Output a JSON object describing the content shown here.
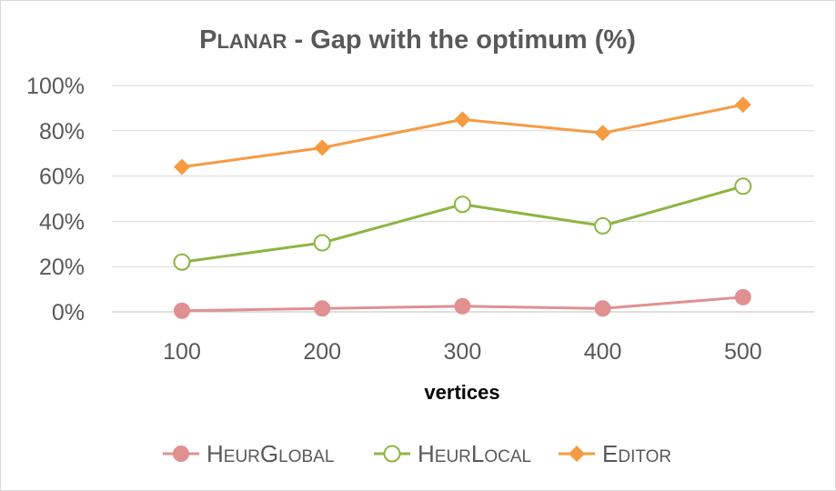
{
  "chart_data": {
    "type": "line",
    "title": {
      "prefix_cap": "P",
      "prefix_smallcaps": "LANAR",
      "rest": " - Gap with the optimum (%)"
    },
    "xlabel": "vertices",
    "ylabel": "",
    "categories": [
      "100",
      "200",
      "300",
      "400",
      "500"
    ],
    "y_ticks": [
      "0%",
      "20%",
      "40%",
      "60%",
      "80%",
      "100%"
    ],
    "ylim": [
      0,
      100
    ],
    "grid": true,
    "legend_position": "bottom",
    "series": [
      {
        "name": "HeurGlobal",
        "legend_parts": [
          [
            "H",
            "EUR"
          ],
          [
            "G",
            "LOBAL"
          ]
        ],
        "values": [
          0.5,
          1.5,
          2.5,
          1.5,
          6.5
        ],
        "color": "#e09090",
        "marker": "circle-filled"
      },
      {
        "name": "HeurLocal",
        "legend_parts": [
          [
            "H",
            "EUR"
          ],
          [
            "L",
            "OCAL"
          ]
        ],
        "values": [
          22,
          30.5,
          47.5,
          38,
          55.5
        ],
        "color": "#8db542",
        "marker": "circle-open"
      },
      {
        "name": "Editor",
        "legend_parts": [
          [
            "E",
            "DITOR"
          ]
        ],
        "values": [
          64,
          72.5,
          85,
          79,
          91.5
        ],
        "color": "#f79a42",
        "marker": "diamond"
      }
    ]
  }
}
